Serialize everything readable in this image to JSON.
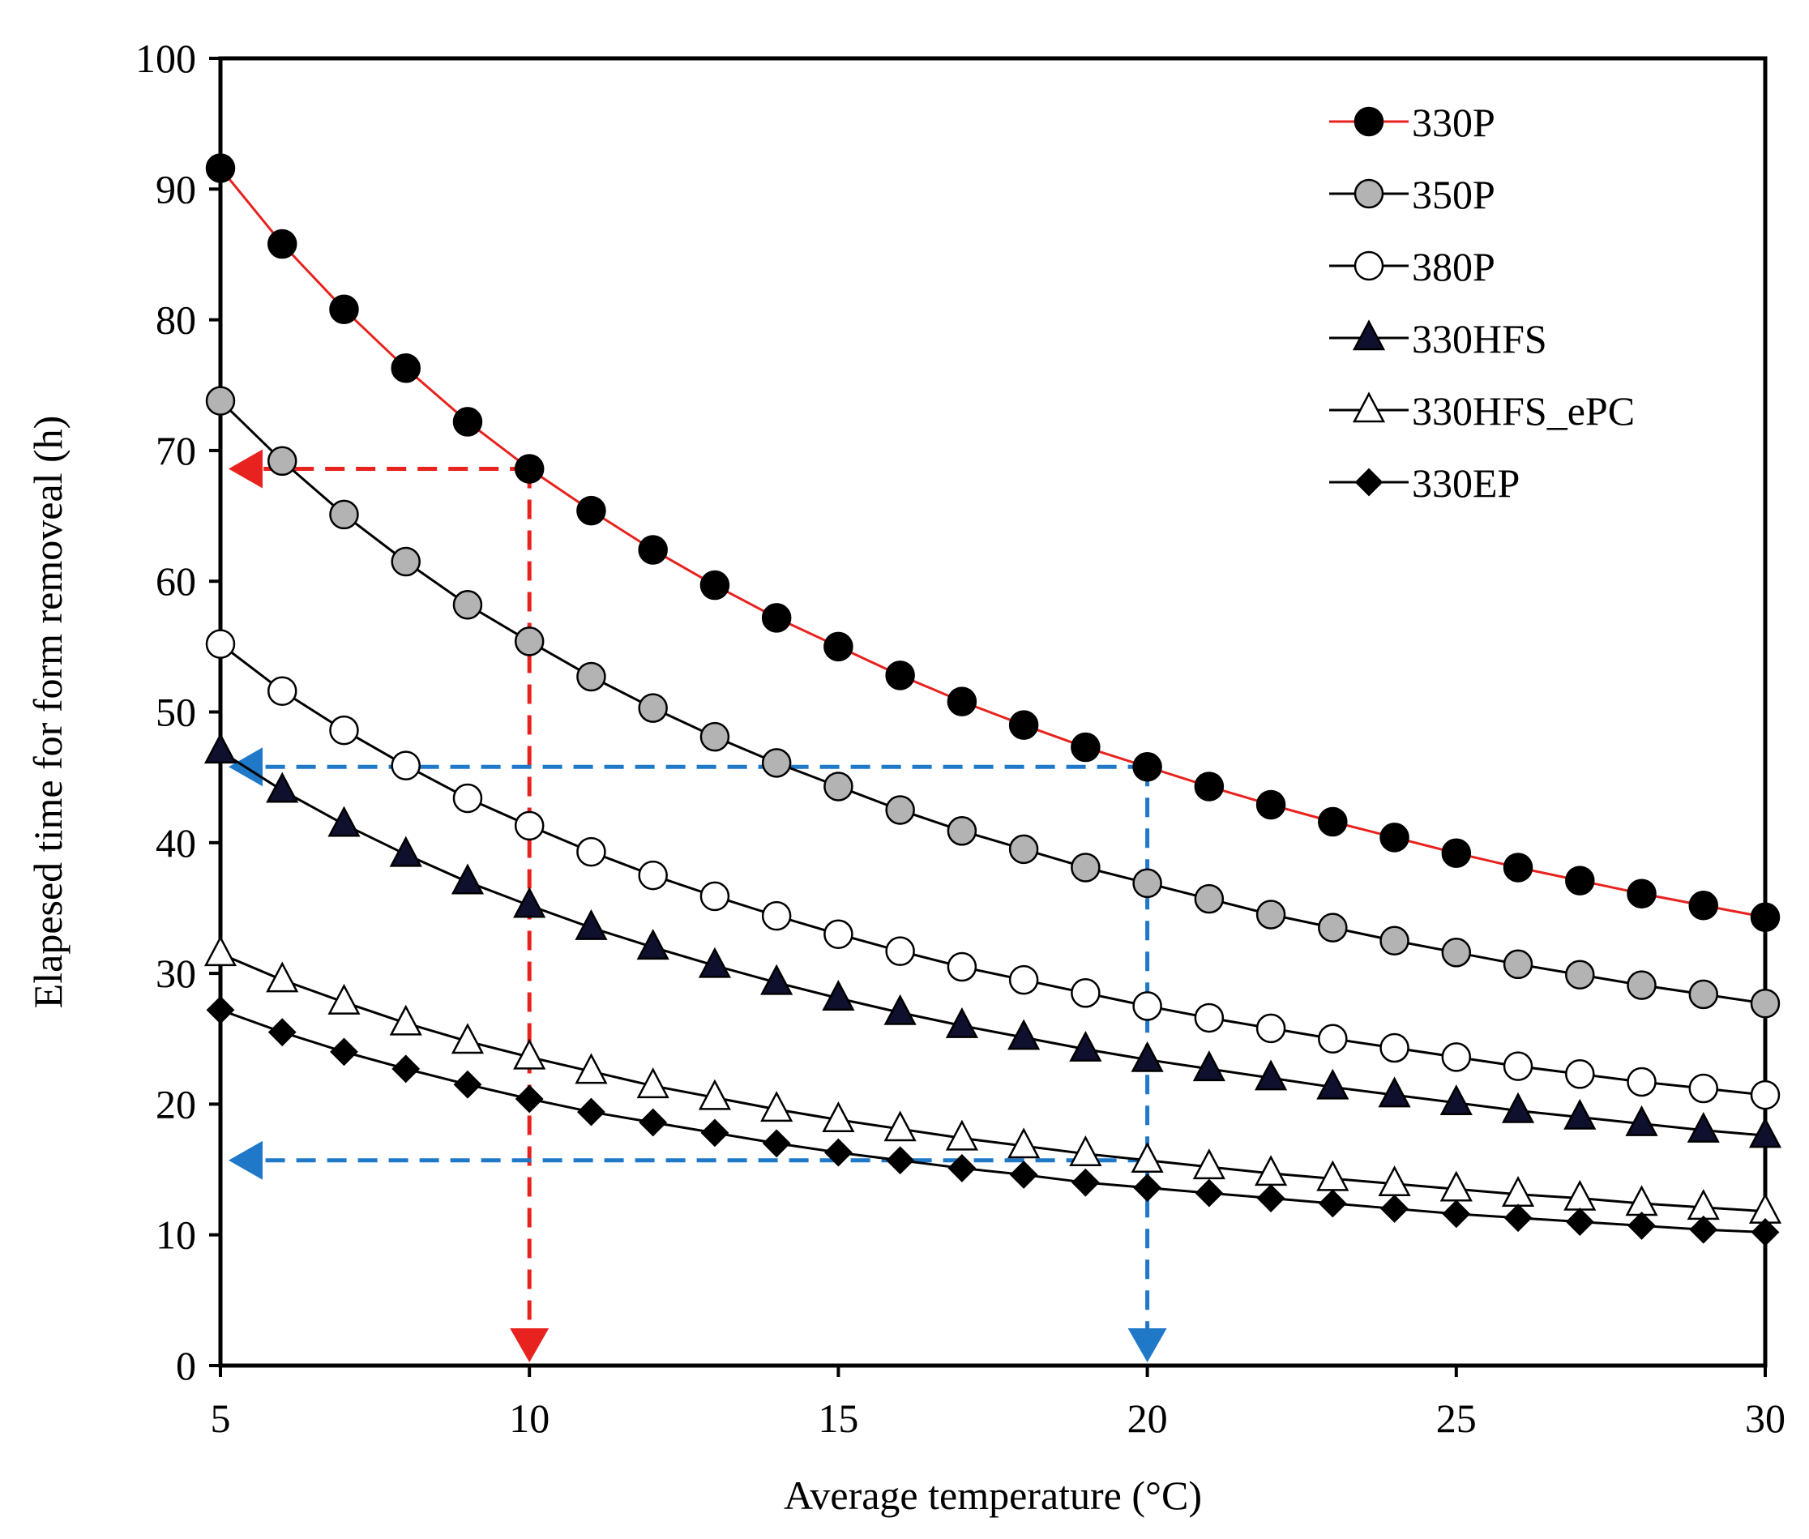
{
  "chart_data": {
    "type": "line",
    "title": "",
    "xlabel": "Average temperature (°C)",
    "ylabel": "Elapesed time for form removeal (h)",
    "xlim": [
      5,
      30
    ],
    "ylim": [
      0,
      100
    ],
    "x_ticks": [
      5,
      10,
      15,
      20,
      25,
      30
    ],
    "y_ticks": [
      0,
      10,
      20,
      30,
      40,
      50,
      60,
      70,
      80,
      90,
      100
    ],
    "x": [
      5,
      6,
      7,
      8,
      9,
      10,
      11,
      12,
      13,
      14,
      15,
      16,
      17,
      18,
      19,
      20,
      21,
      22,
      23,
      24,
      25,
      26,
      27,
      28,
      29,
      30
    ],
    "legend_position": "top-right",
    "series": [
      {
        "name": "330P",
        "marker": "circle",
        "marker_fill": "#000000",
        "line_color": "#e8221e",
        "values": [
          91.6,
          85.8,
          80.8,
          76.3,
          72.2,
          68.6,
          65.4,
          62.4,
          59.7,
          57.2,
          55.0,
          52.8,
          50.8,
          49.0,
          47.3,
          45.8,
          44.3,
          42.9,
          41.6,
          40.4,
          39.2,
          38.1,
          37.1,
          36.1,
          35.2,
          34.3
        ]
      },
      {
        "name": "350P",
        "marker": "circle",
        "marker_fill": "#b3b3b3",
        "line_color": "#000000",
        "values": [
          73.8,
          69.2,
          65.1,
          61.5,
          58.2,
          55.4,
          52.7,
          50.3,
          48.1,
          46.1,
          44.3,
          42.5,
          40.9,
          39.5,
          38.1,
          36.9,
          35.7,
          34.5,
          33.5,
          32.5,
          31.6,
          30.7,
          29.9,
          29.1,
          28.4,
          27.7
        ]
      },
      {
        "name": "380P",
        "marker": "circle",
        "marker_fill": "#ffffff",
        "line_color": "#000000",
        "values": [
          55.2,
          51.6,
          48.6,
          45.9,
          43.4,
          41.3,
          39.3,
          37.5,
          35.9,
          34.4,
          33.0,
          31.7,
          30.5,
          29.5,
          28.5,
          27.5,
          26.6,
          25.8,
          25.0,
          24.3,
          23.6,
          22.9,
          22.3,
          21.7,
          21.2,
          20.7
        ]
      },
      {
        "name": "330HFS",
        "marker": "triangle",
        "marker_fill": "#0f0f2e",
        "line_color": "#000000",
        "values": [
          47.0,
          44.0,
          41.4,
          39.1,
          37.0,
          35.2,
          33.5,
          32.0,
          30.6,
          29.3,
          28.1,
          27.0,
          26.0,
          25.1,
          24.2,
          23.4,
          22.7,
          22.0,
          21.3,
          20.7,
          20.1,
          19.5,
          19.0,
          18.5,
          18.0,
          17.6
        ]
      },
      {
        "name": "330HFS_ePC",
        "marker": "triangle",
        "marker_fill": "#ffffff",
        "line_color": "#000000",
        "values": [
          31.5,
          29.5,
          27.8,
          26.2,
          24.8,
          23.6,
          22.5,
          21.4,
          20.5,
          19.6,
          18.8,
          18.1,
          17.4,
          16.8,
          16.2,
          15.7,
          15.2,
          14.7,
          14.3,
          13.9,
          13.5,
          13.1,
          12.8,
          12.4,
          12.1,
          11.8
        ]
      },
      {
        "name": "330EP",
        "marker": "diamond",
        "marker_fill": "#000000",
        "line_color": "#000000",
        "values": [
          27.2,
          25.5,
          24.0,
          22.7,
          21.5,
          20.4,
          19.4,
          18.6,
          17.8,
          17.0,
          16.3,
          15.7,
          15.1,
          14.6,
          14.0,
          13.6,
          13.2,
          12.8,
          12.4,
          12.0,
          11.6,
          11.3,
          11.0,
          10.7,
          10.4,
          10.2
        ]
      }
    ],
    "annotations": [
      {
        "type": "dashed-arrow-path",
        "color": "#e8221e",
        "from_x": 10,
        "from_y": 68.6,
        "to_axis": "y",
        "arrow_at": [
          5,
          68.6
        ]
      },
      {
        "type": "dashed-arrow-path",
        "color": "#e8221e",
        "from_x": 10,
        "from_y": 68.6,
        "to_axis": "x",
        "arrow_at": [
          10,
          0
        ]
      },
      {
        "type": "dashed-arrow-path",
        "color": "#1f78c8",
        "from_x": 20,
        "from_y": 45.8,
        "to_axis": "y",
        "arrow_at": [
          5,
          45.8
        ]
      },
      {
        "type": "dashed-arrow-path",
        "color": "#1f78c8",
        "from_x": 20,
        "from_y": 15.7,
        "to_axis": "y",
        "arrow_at": [
          5,
          15.7
        ]
      },
      {
        "type": "dashed-arrow-path",
        "color": "#1f78c8",
        "from_x": 20,
        "from_y": 45.8,
        "to_axis": "x",
        "arrow_at": [
          20,
          0
        ]
      }
    ]
  }
}
